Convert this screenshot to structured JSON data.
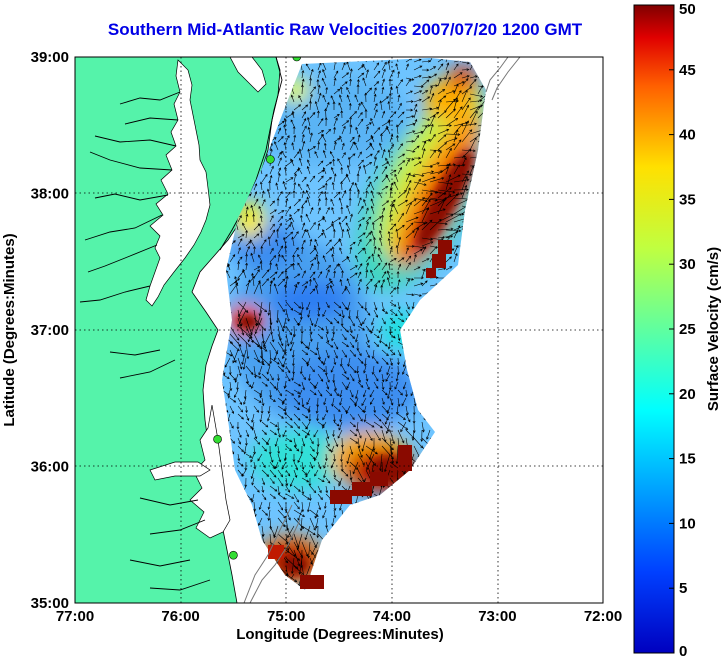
{
  "title": "Southern Mid-Atlantic Raw Velocities 2007/07/20 1200 GMT",
  "x_axis": {
    "label": "Longitude (Degrees:Minutes)",
    "ticks": [
      "77:00",
      "76:00",
      "75:00",
      "74:00",
      "73:00",
      "72:00"
    ],
    "tick_values": [
      -77,
      -76,
      -75,
      -74,
      -73,
      -72
    ]
  },
  "y_axis": {
    "label": "Latitude (Degrees:Minutes)",
    "ticks": [
      "39:00",
      "38:00",
      "37:00",
      "36:00",
      "35:00"
    ],
    "tick_values": [
      39,
      38,
      37,
      36,
      35
    ]
  },
  "colorbar": {
    "label": "Surface Velocity (cm/s)",
    "ticks": [
      "50",
      "45",
      "40",
      "35",
      "30",
      "25",
      "20",
      "15",
      "10",
      "5",
      "0"
    ],
    "min": 0,
    "max": 50,
    "colormap": "jet"
  },
  "colors": {
    "land": "#55f3aa",
    "title": "#0000e6",
    "water": "#ffffff",
    "station": "#33dd33"
  },
  "chart_data": {
    "type": "heatmap",
    "title": "Southern Mid-Atlantic Raw Velocities 2007/07/20 1200 GMT",
    "xlabel": "Longitude (Degrees:Minutes)",
    "ylabel": "Latitude (Degrees:Minutes)",
    "colorbar_label": "Surface Velocity (cm/s)",
    "xlim": [
      -77,
      -72
    ],
    "ylim": [
      35,
      39
    ],
    "clim": [
      0,
      50
    ],
    "velocity_features": [
      {
        "name": "northeast high-velocity band",
        "lon": -73.55,
        "lat": 37.9,
        "speed": 48
      },
      {
        "name": "northeast band tip",
        "lon": -73.3,
        "lat": 38.5,
        "speed": 40
      },
      {
        "name": "nearshore hot spot",
        "lon": -75.35,
        "lat": 37.05,
        "speed": 48
      },
      {
        "name": "southern high-velocity patch",
        "lon": -74.0,
        "lat": 36.05,
        "speed": 48
      },
      {
        "name": "southern tip patch",
        "lon": -74.9,
        "lat": 35.4,
        "speed": 45
      },
      {
        "name": "central slow region",
        "lon": -74.8,
        "lat": 37.0,
        "speed": 5
      },
      {
        "name": "background interior",
        "lon": -74.5,
        "lat": 36.8,
        "speed": 12
      }
    ],
    "shore_stations": [
      {
        "lon": -74.9,
        "lat": 39.0
      },
      {
        "lon": -75.15,
        "lat": 38.25
      },
      {
        "lon": -75.65,
        "lat": 36.2
      },
      {
        "lon": -75.5,
        "lat": 35.35
      }
    ]
  }
}
